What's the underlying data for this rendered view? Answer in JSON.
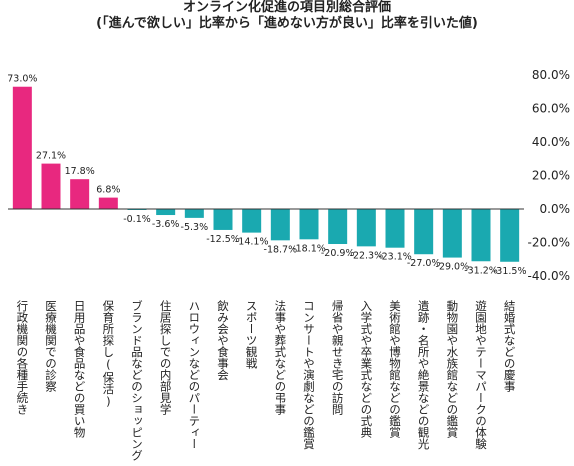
{
  "chart_data": {
    "type": "bar",
    "title_lines": [
      "オンライン化促進の項目別総合評価",
      "(「進んで欲しい」比率から「進めない方が良い」比率を引いた値)"
    ],
    "categories": [
      "行政機関の各種手続き",
      "医療機関での診察",
      "日用品や食品などの買い物",
      "保育所探し(保活)",
      "ブランド品などのショッピング",
      "住居探しでの内部見学",
      "ハロウィンなどのパーティー",
      "飲み会や食事会",
      "スポーツ観戦",
      "法事や葬式などの弔事",
      "コンサートや演劇などの鑑賞",
      "帰省や親せき宅の訪問",
      "入学式や卒業式などの式典",
      "美術館や博物館などの鑑賞",
      "遺跡・名所や絶景などの観光",
      "動物園や水族館などの鑑賞",
      "遊園地やテーマパークの体験",
      "結婚式などの慶事"
    ],
    "values": [
      73.0,
      27.1,
      17.8,
      6.8,
      -0.1,
      -3.6,
      -5.3,
      -12.5,
      -14.1,
      -18.7,
      -18.1,
      -20.9,
      -22.3,
      -23.1,
      -27.0,
      -29.0,
      -31.2,
      -31.5
    ],
    "value_labels": [
      "73.0%",
      "27.1%",
      "17.8%",
      "6.8%",
      "-0.1%",
      "-3.6%",
      "-5.3%",
      "-12.5%",
      "-14.1%",
      "-18.7%",
      "-18.1%",
      "-20.9%",
      "-22.3%",
      "-23.1%",
      "-27.0%",
      "-29.0%",
      "-31.2%",
      "-31.5%"
    ],
    "yticks": [
      80,
      60,
      40,
      20,
      0,
      -20,
      -40
    ],
    "ytick_labels": [
      "80.0%",
      "60.0%",
      "40.0%",
      "20.0%",
      "0.0%",
      "-20.0%",
      "-40.0%"
    ],
    "ylim": [
      -40,
      80
    ],
    "y_axis_side": "right",
    "grid": false,
    "legend": "none",
    "colors": {
      "positive": "#e8287f",
      "negative": "#1aa9b0",
      "axis": "#333333"
    }
  }
}
